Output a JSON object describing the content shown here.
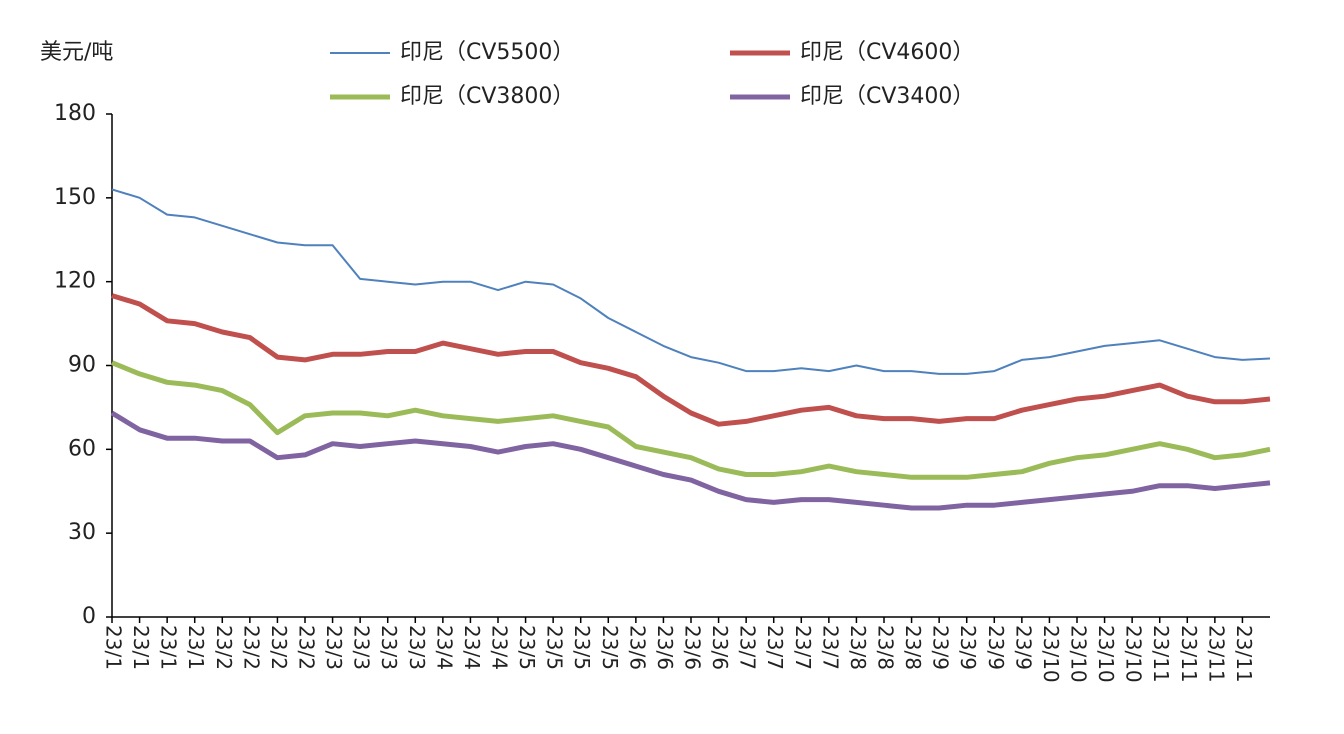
{
  "chart_data": {
    "type": "line",
    "y_label": "美元/吨",
    "categories": [
      "23/1",
      "23/1",
      "23/1",
      "23/1",
      "23/2",
      "23/2",
      "23/2",
      "23/2",
      "23/3",
      "23/3",
      "23/3",
      "23/3",
      "23/4",
      "23/4",
      "23/4",
      "23/5",
      "23/5",
      "23/5",
      "23/5",
      "23/6",
      "23/6",
      "23/6",
      "23/6",
      "23/7",
      "23/7",
      "23/7",
      "23/7",
      "23/8",
      "23/8",
      "23/8",
      "23/9",
      "23/9",
      "23/9",
      "23/9",
      "23/10",
      "23/10",
      "23/10",
      "23/10",
      "23/11",
      "23/11",
      "23/11",
      "23/11",
      null
    ],
    "series": [
      {
        "name": "印尼（CV5500）",
        "color": "#4f81bd",
        "linewidth": 2,
        "values": [
          153,
          150,
          144,
          143,
          140,
          137,
          134,
          133,
          133,
          121,
          120,
          119,
          120,
          120,
          117,
          120,
          119,
          114,
          107,
          102,
          97,
          93,
          91,
          88,
          88,
          89,
          88,
          90,
          88,
          88,
          87,
          87,
          88,
          92,
          93,
          95,
          97,
          98,
          99,
          96,
          93,
          92,
          92.5
        ]
      },
      {
        "name": "印尼（CV4600）",
        "color": "#c0504d",
        "linewidth": 5,
        "values": [
          115,
          112,
          106,
          105,
          102,
          100,
          93,
          92,
          94,
          94,
          95,
          95,
          98,
          96,
          94,
          95,
          95,
          91,
          89,
          86,
          79,
          73,
          69,
          70,
          72,
          74,
          75,
          72,
          71,
          71,
          70,
          71,
          71,
          74,
          76,
          78,
          79,
          81,
          83,
          79,
          77,
          77,
          78
        ]
      },
      {
        "name": "印尼（CV3800）",
        "color": "#9bbb59",
        "linewidth": 5,
        "values": [
          91,
          87,
          84,
          83,
          81,
          76,
          66,
          72,
          73,
          73,
          72,
          74,
          72,
          71,
          70,
          71,
          72,
          70,
          68,
          61,
          59,
          57,
          53,
          51,
          51,
          52,
          54,
          52,
          51,
          50,
          50,
          50,
          51,
          52,
          55,
          57,
          58,
          60,
          62,
          60,
          57,
          58,
          60
        ]
      },
      {
        "name": "印尼（CV3400）",
        "color": "#8064a2",
        "linewidth": 5,
        "values": [
          73,
          67,
          64,
          64,
          63,
          63,
          57,
          58,
          62,
          61,
          62,
          63,
          62,
          61,
          59,
          61,
          62,
          60,
          57,
          54,
          51,
          49,
          45,
          42,
          41,
          42,
          42,
          41,
          40,
          39,
          39,
          40,
          40,
          41,
          42,
          43,
          44,
          45,
          47,
          47,
          46,
          47,
          48
        ]
      }
    ],
    "ylim": [
      0,
      180
    ],
    "yticks": [
      0,
      30,
      60,
      90,
      120,
      150,
      180
    ],
    "grid": false,
    "legend": "top"
  }
}
